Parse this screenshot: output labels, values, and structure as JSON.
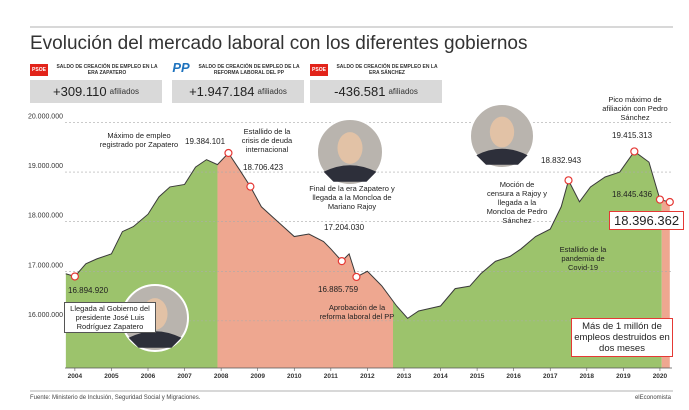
{
  "header": {
    "title": "Evolución del mercado laboral con los diferentes gobiernos",
    "summaries": [
      {
        "party": "PSOE",
        "caption": "SALDO DE CREACIÓN DE EMPLEO EN LA ERA ZAPATERO",
        "value": "+309.110",
        "unit": "afiliados"
      },
      {
        "party": "PP",
        "caption": "SALDO DE CREACIÓN DE EMPLEO DE LA REFORMA LABORAL DEL PP",
        "value": "+1.947.184",
        "unit": "afiliados"
      },
      {
        "party": "PSOE",
        "caption": "SALDO DE CREACIÓN DE EMPLEO EN LA ERA SÁNCHEZ",
        "value": "-436.581",
        "unit": "afiliados"
      }
    ]
  },
  "chart_data": {
    "type": "area",
    "x": [
      2003.75,
      2004.0,
      2004.3,
      2004.6,
      2005.0,
      2005.3,
      2005.6,
      2006.0,
      2006.3,
      2006.6,
      2007.0,
      2007.3,
      2007.6,
      2007.9,
      2008.2,
      2008.5,
      2008.8,
      2009.1,
      2009.4,
      2009.7,
      2010.0,
      2010.4,
      2010.8,
      2011.0,
      2011.3,
      2011.5,
      2011.7,
      2012.0,
      2012.4,
      2012.8,
      2013.1,
      2013.4,
      2013.7,
      2014.0,
      2014.4,
      2014.8,
      2015.1,
      2015.5,
      2015.9,
      2016.2,
      2016.6,
      2017.0,
      2017.3,
      2017.5,
      2017.8,
      2018.1,
      2018.5,
      2018.9,
      2019.3,
      2019.7,
      2020.0,
      2020.27
    ],
    "values": [
      16950000,
      16894920,
      17150000,
      17250000,
      17350000,
      17800000,
      17900000,
      18150000,
      18500000,
      18700000,
      18750000,
      19100000,
      19250000,
      19150000,
      19384101,
      19050000,
      18706423,
      18300000,
      18100000,
      17900000,
      17700000,
      17750000,
      17600000,
      17450000,
      17204030,
      17350000,
      16885759,
      17000000,
      16700000,
      16300000,
      16050000,
      16200000,
      16250000,
      16300000,
      16650000,
      16700000,
      16950000,
      17200000,
      17300000,
      17450000,
      17700000,
      17850000,
      18300000,
      18832943,
      18400000,
      18700000,
      18900000,
      19000000,
      19415313,
      19200000,
      18445436,
      18396362
    ],
    "line_color": "#3a3a3a",
    "marker_color": "#e53935",
    "periods": [
      {
        "start": 2003.75,
        "end": 2007.9,
        "color": "#9cc36c"
      },
      {
        "start": 2007.9,
        "end": 2012.7,
        "color": "#eea790"
      },
      {
        "start": 2012.7,
        "end": 2020.05,
        "color": "#9cc36c"
      },
      {
        "start": 2020.05,
        "end": 2020.33,
        "color": "#eea790"
      }
    ],
    "xlim": [
      2003.73,
      2020.33
    ],
    "xticks": [
      2004,
      2005,
      2006,
      2007,
      2008,
      2009,
      2010,
      2011,
      2012,
      2013,
      2014,
      2015,
      2016,
      2017,
      2018,
      2019,
      2020
    ],
    "ylim": [
      15050000,
      20150000
    ],
    "yticks": [
      {
        "value": 16000000,
        "label": "16.000.000"
      },
      {
        "value": 17000000,
        "label": "17.000.000"
      },
      {
        "value": 18000000,
        "label": "18.000.000"
      },
      {
        "value": 19000000,
        "label": "19.000.000"
      },
      {
        "value": 20000000,
        "label": "20.000.000"
      }
    ],
    "grid": true,
    "annotations": [
      {
        "x": 2008.2,
        "value": 19384101,
        "label": "19.384.101",
        "text": "Máximo de empleo registrado por Zapatero"
      },
      {
        "x": 2008.8,
        "value": 18706423,
        "label": "18.706.423",
        "text": "Estallido de la crisis de deuda internacional"
      },
      {
        "x": 2011.3,
        "value": 17204030,
        "label": "17.204.030",
        "text": "Final de la era Zapatero y llegada a la Moncloa de Mariano Rajoy"
      },
      {
        "x": 2011.7,
        "value": 16885759,
        "label": "16.885.759",
        "text": "Aprobación de la reforma laboral del PP"
      },
      {
        "x": 2004.0,
        "value": 16894920,
        "label": "16.894.920",
        "text": "Llegada al Gobierno del presidente José Luis Rodríguez Zapatero"
      },
      {
        "x": 2017.5,
        "value": 18832943,
        "label": "18.832.943",
        "text": "Moción de censura a Rajoy y llegada a la Moncloa de Pedro Sánchez"
      },
      {
        "x": 2019.3,
        "value": 19415313,
        "label": "19.415.313",
        "text": "Pico máximo de afiliación con Pedro Sánchez"
      },
      {
        "x": 2020.0,
        "value": 18445436,
        "label": "18.445.436",
        "text": "Estallido de la pandemia de Covid-19"
      },
      {
        "x": 2020.27,
        "value": 18396362,
        "label": "18.396.362"
      }
    ],
    "note": "Más de 1 millón de empleos destruidos en dos meses"
  },
  "footer": {
    "source": "Fuente: Ministerio de Inclusión, Seguridad Social y Migraciones.",
    "brand": "elEconomista"
  }
}
